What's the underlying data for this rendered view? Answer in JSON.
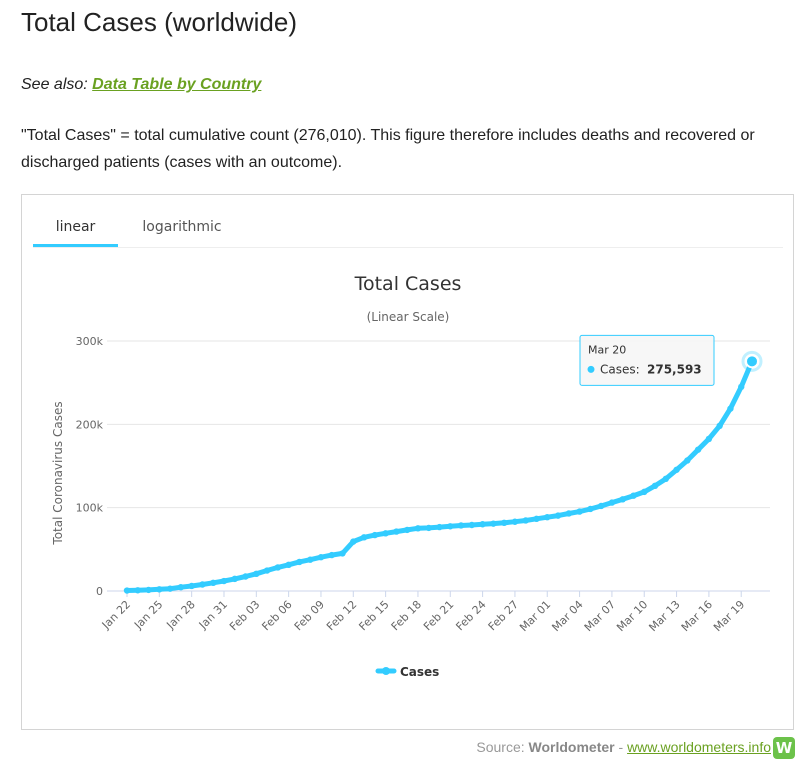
{
  "page": {
    "title": "Total Cases (worldwide)",
    "see_also_prefix": "See also:",
    "see_also_link": "Data Table by Country",
    "description": "\"Total Cases\" = total cumulative count (276,010). This figure therefore includes deaths and recovered or discharged patients (cases with an outcome)."
  },
  "tabs": [
    {
      "label": "linear",
      "active": true
    },
    {
      "label": "logarithmic",
      "active": false
    }
  ],
  "source": {
    "prefix": "Source:",
    "name": "Worldometer",
    "separator": "-",
    "link": "www.worldometers.info",
    "logo_letter": "W"
  },
  "colors": {
    "series": "#33ccff",
    "link": "#6aa121",
    "logo": "#6cc24a"
  },
  "tooltip": {
    "date": "Mar 20",
    "label": "Cases:",
    "value": "275,593"
  },
  "chart_data": {
    "type": "line",
    "title": "Total Cases",
    "subtitle": "(Linear Scale)",
    "ylabel": "Total Coronavirus Cases",
    "xlabel": "",
    "ylim": [
      0,
      300000
    ],
    "yticks": [
      0,
      100000,
      200000,
      300000
    ],
    "ytick_labels": [
      "0",
      "100k",
      "200k",
      "300k"
    ],
    "xtick_labels": [
      "Jan 22",
      "Jan 25",
      "Jan 28",
      "Jan 31",
      "Feb 03",
      "Feb 06",
      "Feb 09",
      "Feb 12",
      "Feb 15",
      "Feb 18",
      "Feb 21",
      "Feb 24",
      "Feb 27",
      "Mar 01",
      "Mar 04",
      "Mar 07",
      "Mar 10",
      "Mar 13",
      "Mar 16",
      "Mar 19"
    ],
    "grid": true,
    "legend": "bottom-center",
    "x": [
      "Jan 22",
      "Jan 23",
      "Jan 24",
      "Jan 25",
      "Jan 26",
      "Jan 27",
      "Jan 28",
      "Jan 29",
      "Jan 30",
      "Jan 31",
      "Feb 01",
      "Feb 02",
      "Feb 03",
      "Feb 04",
      "Feb 05",
      "Feb 06",
      "Feb 07",
      "Feb 08",
      "Feb 09",
      "Feb 10",
      "Feb 11",
      "Feb 12",
      "Feb 13",
      "Feb 14",
      "Feb 15",
      "Feb 16",
      "Feb 17",
      "Feb 18",
      "Feb 19",
      "Feb 20",
      "Feb 21",
      "Feb 22",
      "Feb 23",
      "Feb 24",
      "Feb 25",
      "Feb 26",
      "Feb 27",
      "Feb 28",
      "Feb 29",
      "Mar 01",
      "Mar 02",
      "Mar 03",
      "Mar 04",
      "Mar 05",
      "Mar 06",
      "Mar 07",
      "Mar 08",
      "Mar 09",
      "Mar 10",
      "Mar 11",
      "Mar 12",
      "Mar 13",
      "Mar 14",
      "Mar 15",
      "Mar 16",
      "Mar 17",
      "Mar 18",
      "Mar 19",
      "Mar 20"
    ],
    "series": [
      {
        "name": "Cases",
        "values": [
          580,
          845,
          1317,
          2015,
          2800,
          4581,
          6058,
          7813,
          9823,
          11950,
          14553,
          17391,
          20630,
          24545,
          28266,
          31439,
          34876,
          37552,
          40553,
          43099,
          45134,
          59287,
          64438,
          67100,
          69197,
          71329,
          73332,
          75184,
          75700,
          76677,
          77673,
          78651,
          79205,
          80087,
          80828,
          81820,
          83112,
          84615,
          86604,
          88585,
          90443,
          93016,
          95314,
          98425,
          102050,
          106099,
          109991,
          114381,
          118948,
          126214,
          134576,
          145483,
          156653,
          169593,
          182490,
          198238,
          218822,
          244933,
          275593
        ]
      }
    ]
  }
}
